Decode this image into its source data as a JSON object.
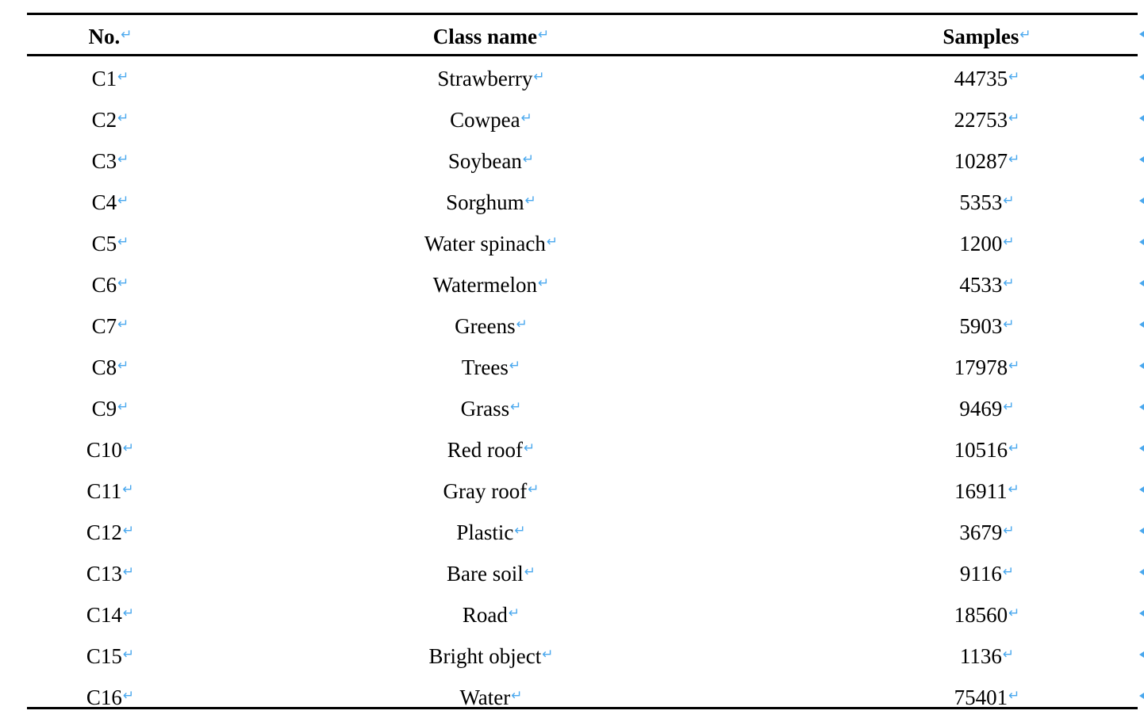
{
  "table": {
    "headers": {
      "no": "No.",
      "class_name": "Class name",
      "samples": "Samples"
    },
    "paragraph_mark": "↵",
    "rows": [
      {
        "no": "C1",
        "class_name": "Strawberry",
        "samples": "44735"
      },
      {
        "no": "C2",
        "class_name": "Cowpea",
        "samples": "22753"
      },
      {
        "no": "C3",
        "class_name": "Soybean",
        "samples": "10287"
      },
      {
        "no": "C4",
        "class_name": "Sorghum",
        "samples": "5353"
      },
      {
        "no": "C5",
        "class_name": "Water spinach",
        "samples": "1200"
      },
      {
        "no": "C6",
        "class_name": "Watermelon",
        "samples": "4533"
      },
      {
        "no": "C7",
        "class_name": "Greens",
        "samples": "5903"
      },
      {
        "no": "C8",
        "class_name": "Trees",
        "samples": "17978"
      },
      {
        "no": "C9",
        "class_name": "Grass",
        "samples": "9469"
      },
      {
        "no": "C10",
        "class_name": "Red roof",
        "samples": "10516"
      },
      {
        "no": "C11",
        "class_name": "Gray roof",
        "samples": "16911"
      },
      {
        "no": "C12",
        "class_name": "Plastic",
        "samples": "3679"
      },
      {
        "no": "C13",
        "class_name": "Bare soil",
        "samples": "9116"
      },
      {
        "no": "C14",
        "class_name": "Road",
        "samples": "18560"
      },
      {
        "no": "C15",
        "class_name": "Bright object",
        "samples": "1136"
      },
      {
        "no": "C16",
        "class_name": "Water",
        "samples": "75401"
      }
    ]
  },
  "colors": {
    "text": "#000000",
    "rule": "#000000",
    "formatting_mark": "#4aa8ee",
    "background": "#ffffff"
  }
}
